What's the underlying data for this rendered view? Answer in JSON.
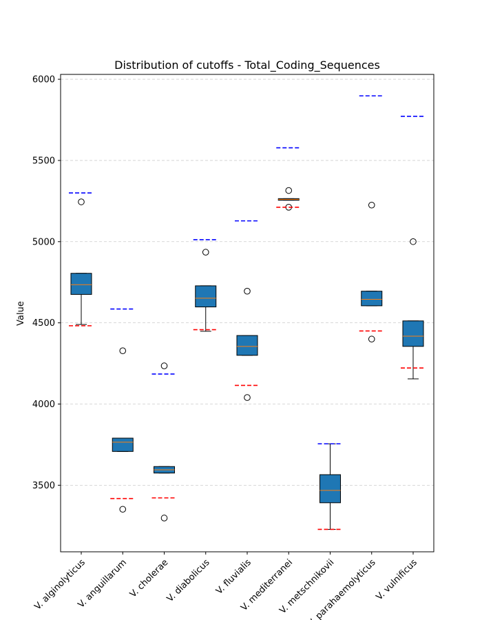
{
  "chart_data": {
    "type": "box",
    "title": "Distribution of cutoffs - Total_Coding_Sequences",
    "xlabel": "",
    "ylabel": "Value",
    "ylim": [
      3090,
      6030
    ],
    "yticks": [
      3500,
      4000,
      4500,
      5000,
      5500,
      6000
    ],
    "grid": "y-dashed",
    "colors": {
      "box_fill": "#1f77b4",
      "median": "#ff7f0e",
      "upper_cutoff": "#0000ff",
      "lower_cutoff": "#ff0000"
    },
    "categories": [
      "V. alginolyticus",
      "V. anguillarum",
      "V. cholerae",
      "V. diabolicus",
      "V. fluvialis",
      "V. mediterranei",
      "V. metschnikovii",
      "V. parahaemolyticus",
      "V. vulnificus"
    ],
    "boxes": [
      {
        "whisker_low": 4490,
        "q1": 4675,
        "median": 4735,
        "q3": 4805,
        "whisker_high": 4805,
        "outliers": [
          5245
        ],
        "upper_cutoff": 5300,
        "lower_cutoff": 4482
      },
      {
        "whisker_low": 3708,
        "q1": 3708,
        "median": 3765,
        "q3": 3790,
        "whisker_high": 3790,
        "outliers": [
          4328,
          3352
        ],
        "upper_cutoff": 4585,
        "lower_cutoff": 3418
      },
      {
        "whisker_low": 3575,
        "q1": 3575,
        "median": 3595,
        "q3": 3615,
        "whisker_high": 3615,
        "outliers": [
          4235,
          3298
        ],
        "upper_cutoff": 4185,
        "lower_cutoff": 3422
      },
      {
        "whisker_low": 4448,
        "q1": 4598,
        "median": 4652,
        "q3": 4728,
        "whisker_high": 4728,
        "outliers": [
          4935
        ],
        "upper_cutoff": 5012,
        "lower_cutoff": 4458
      },
      {
        "whisker_low": 4300,
        "q1": 4300,
        "median": 4355,
        "q3": 4422,
        "whisker_high": 4422,
        "outliers": [
          4695,
          4040
        ],
        "upper_cutoff": 5128,
        "lower_cutoff": 4115
      },
      {
        "whisker_low": 5255,
        "q1": 5255,
        "median": 5260,
        "q3": 5265,
        "whisker_high": 5265,
        "outliers": [
          5315,
          5212
        ],
        "upper_cutoff": 5578,
        "lower_cutoff": 5212
      },
      {
        "whisker_low": 3228,
        "q1": 3392,
        "median": 3468,
        "q3": 3565,
        "whisker_high": 3755,
        "outliers": [],
        "upper_cutoff": 3755,
        "lower_cutoff": 3228
      },
      {
        "whisker_low": 4605,
        "q1": 4605,
        "median": 4645,
        "q3": 4695,
        "whisker_high": 4695,
        "outliers": [
          5225,
          4400
        ],
        "upper_cutoff": 5898,
        "lower_cutoff": 4450
      },
      {
        "whisker_low": 4155,
        "q1": 4355,
        "median": 4418,
        "q3": 4512,
        "whisker_high": 4512,
        "outliers": [
          5000
        ],
        "upper_cutoff": 5772,
        "lower_cutoff": 4222
      }
    ]
  }
}
